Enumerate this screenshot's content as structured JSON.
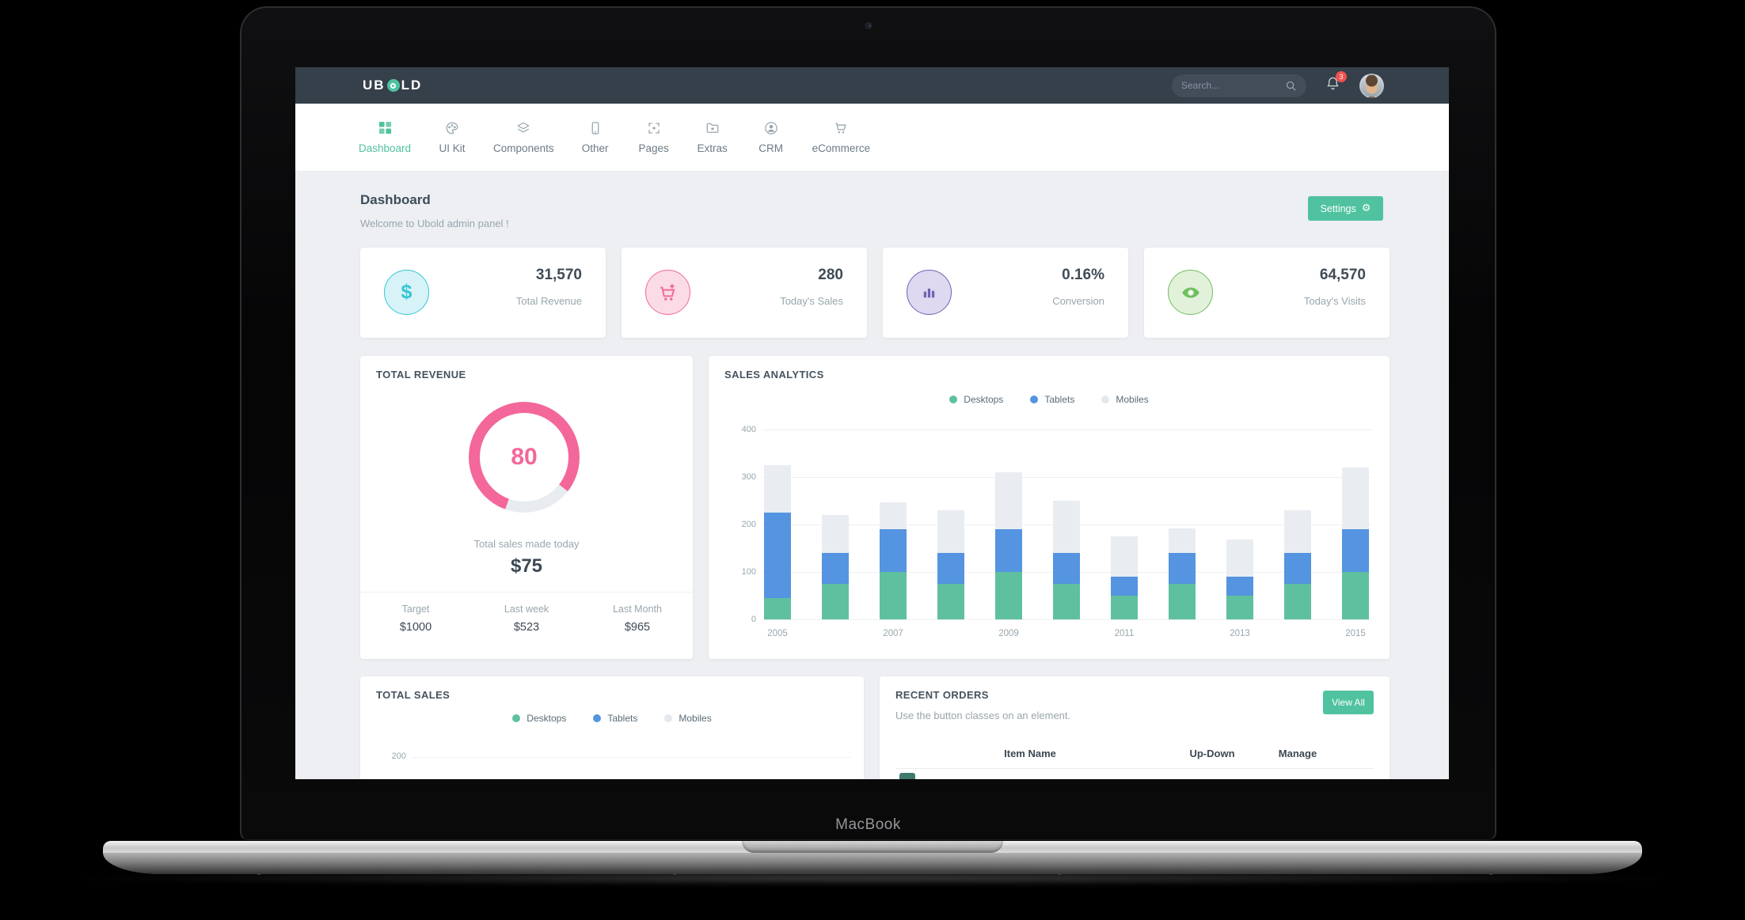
{
  "theme": {
    "accent": "#50c2a0",
    "navbar_bg": "#36404a",
    "page_bg": "#edeff3"
  },
  "device": {
    "label": "MacBook"
  },
  "navbar": {
    "logo_pre": "UB",
    "logo_post": "LD",
    "search_placeholder": "Search...",
    "notification_count": "3"
  },
  "menu": {
    "items": [
      {
        "label": "Dashboard",
        "icon": "grid-icon",
        "active": true
      },
      {
        "label": "UI Kit",
        "icon": "palette-icon",
        "active": false
      },
      {
        "label": "Components",
        "icon": "layers-icon",
        "active": false
      },
      {
        "label": "Other",
        "icon": "tablet-icon",
        "active": false
      },
      {
        "label": "Pages",
        "icon": "expand-icon",
        "active": false
      },
      {
        "label": "Extras",
        "icon": "folder-star-icon",
        "active": false
      },
      {
        "label": "CRM",
        "icon": "user-icon",
        "active": false
      },
      {
        "label": "eCommerce",
        "icon": "cart-icon",
        "active": false
      }
    ]
  },
  "page_header": {
    "title": "Dashboard",
    "subtitle": "Welcome to Ubold admin panel !",
    "settings_button": "Settings"
  },
  "stat_cards": [
    {
      "value": "31,570",
      "label": "Total Revenue",
      "icon": "dollar-icon",
      "color": "#36c6d3",
      "bg": "#d7f3f7"
    },
    {
      "value": "280",
      "label": "Today's Sales",
      "icon": "cart-plus-icon",
      "color": "#f06a93",
      "bg": "#fbdce6"
    },
    {
      "value": "0.16%",
      "label": "Conversion",
      "icon": "bar-chart-icon",
      "color": "#6f63b4",
      "bg": "#ded9f0"
    },
    {
      "value": "64,570",
      "label": "Today's Visits",
      "icon": "eye-icon",
      "color": "#6fbf5e",
      "bg": "#e2f1da"
    }
  ],
  "total_revenue": {
    "title": "TOTAL REVENUE",
    "gauge_value": "80",
    "gauge_percent": 80,
    "gauge_color": "#f3679a",
    "gauge_track": "#e8ecf1",
    "caption": "Total sales made today",
    "amount": "$75",
    "footer": [
      {
        "label": "Target",
        "value": "$1000"
      },
      {
        "label": "Last week",
        "value": "$523"
      },
      {
        "label": "Last Month",
        "value": "$965"
      }
    ]
  },
  "sales_analytics": {
    "title": "SALES ANALYTICS"
  },
  "total_sales": {
    "title": "TOTAL SALES",
    "visible_tick": "200"
  },
  "recent_orders": {
    "title": "RECENT ORDERS",
    "subtitle": "Use the button classes on an element.",
    "view_all_button": "View All",
    "columns": [
      "Item Name",
      "Up-Down",
      "Manage"
    ]
  },
  "legend": {
    "items": [
      {
        "label": "Desktops",
        "color": "#5fc0a0"
      },
      {
        "label": "Tablets",
        "color": "#5494e0"
      },
      {
        "label": "Mobiles",
        "color": "#e4e8ec"
      }
    ]
  },
  "chart_data": [
    {
      "type": "bar",
      "stacked": true,
      "title": "SALES ANALYTICS",
      "categories": [
        "2005",
        "2006",
        "2007",
        "2008",
        "2009",
        "2010",
        "2011",
        "2012",
        "2013",
        "2014",
        "2015"
      ],
      "series": [
        {
          "name": "Desktops",
          "color": "#5fc0a0",
          "values": [
            45,
            75,
            100,
            75,
            100,
            75,
            50,
            75,
            50,
            75,
            100
          ]
        },
        {
          "name": "Tablets",
          "color": "#5494e0",
          "values": [
            180,
            65,
            90,
            65,
            90,
            65,
            40,
            65,
            40,
            65,
            90
          ]
        },
        {
          "name": "Mobiles",
          "color": "#e9edf1",
          "values": [
            100,
            80,
            56,
            90,
            120,
            110,
            85,
            52,
            78,
            90,
            130
          ]
        }
      ],
      "ylim": [
        0,
        400
      ],
      "yticks": [
        0,
        100,
        200,
        300,
        400
      ],
      "xtick_labels_shown": [
        "2005",
        "2007",
        "2009",
        "2011",
        "2013",
        "2015"
      ],
      "legend_position": "top",
      "grid": true
    },
    {
      "type": "bar",
      "title": "TOTAL SALES",
      "partial": true,
      "yticks_visible": [
        200
      ],
      "legend": [
        "Desktops",
        "Tablets",
        "Mobiles"
      ]
    }
  ]
}
